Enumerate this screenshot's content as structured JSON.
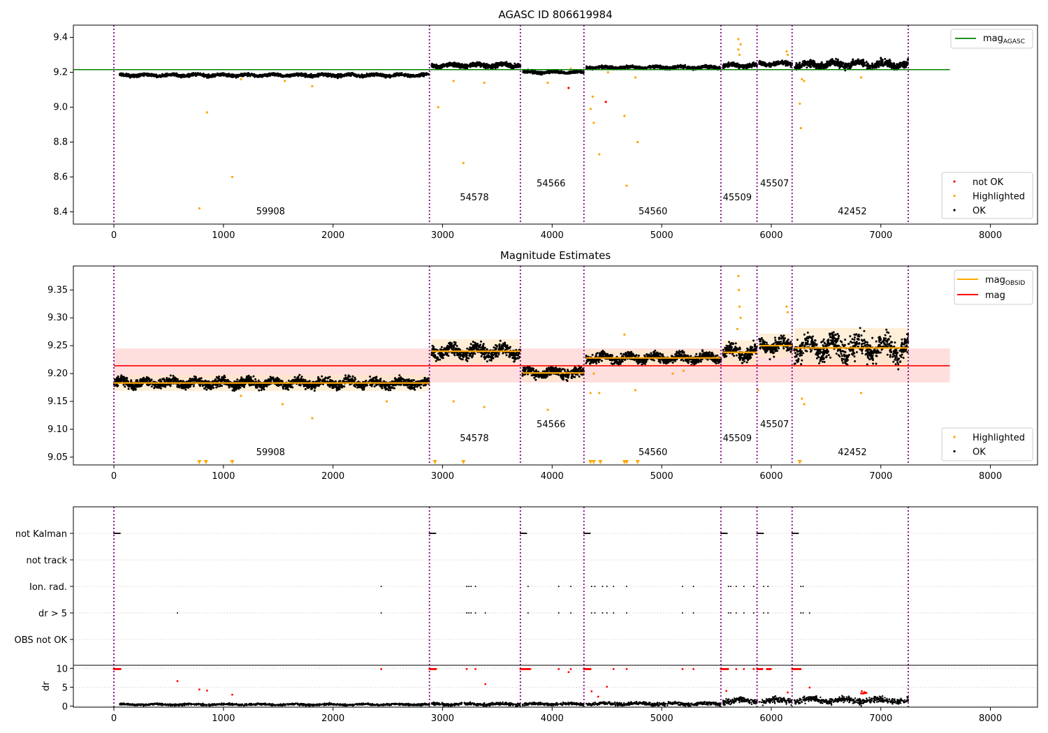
{
  "colors": {
    "ok": "#000000",
    "highlighted": "#ffa500",
    "not_ok": "#ff0000",
    "agasc_line": "#008000",
    "obsid_line": "#ffa500",
    "mag_line": "#ff0000",
    "mag_band": "#ffd6d6",
    "obsid_band": "#ffe8c8",
    "boundary": "#800080",
    "grid": "#b0b0b0"
  },
  "obs_boundaries": [
    0,
    2880,
    3710,
    4290,
    5540,
    5870,
    6190,
    7250
  ],
  "obsids": [
    {
      "id": "59908",
      "x": 1430,
      "level": 0
    },
    {
      "id": "54578",
      "x": 3290,
      "level": 1
    },
    {
      "id": "54566",
      "x": 3990,
      "level": 2
    },
    {
      "id": "54560",
      "x": 4920,
      "level": 0
    },
    {
      "id": "45509",
      "x": 5690,
      "level": 1
    },
    {
      "id": "45507",
      "x": 6030,
      "level": 2
    },
    {
      "id": "42452",
      "x": 6740,
      "level": 0
    }
  ],
  "chart_data": [
    {
      "type": "scatter",
      "title": "AGASC ID 806619984",
      "xlim": [
        -370,
        8430
      ],
      "ylim": [
        8.33,
        9.47
      ],
      "xticks": [
        0,
        1000,
        2000,
        3000,
        4000,
        5000,
        6000,
        7000,
        8000
      ],
      "yticks": [
        8.4,
        8.6,
        8.8,
        9.0,
        9.2,
        9.4
      ],
      "ytick_labels": [
        "8.4",
        "8.6",
        "8.8",
        "9.0",
        "9.2",
        "9.4"
      ],
      "legend_top": [
        {
          "label": "mag",
          "subscript": "AGASC",
          "kind": "line",
          "color": "#008000"
        }
      ],
      "legend_bottom": [
        {
          "label": "not OK",
          "kind": "dot",
          "color": "#ff0000"
        },
        {
          "label": "Highlighted",
          "kind": "dot",
          "color": "#ffa500"
        },
        {
          "label": "OK",
          "kind": "dot",
          "color": "#000000"
        }
      ],
      "agasc_mag": 9.215,
      "segments": [
        {
          "x0": 50,
          "x1": 2880,
          "mean": 9.183,
          "spread": 0.008
        },
        {
          "x0": 2900,
          "x1": 3710,
          "mean": 9.24,
          "spread": 0.012
        },
        {
          "x0": 3730,
          "x1": 4290,
          "mean": 9.2,
          "spread": 0.008
        },
        {
          "x0": 4310,
          "x1": 5540,
          "mean": 9.228,
          "spread": 0.008
        },
        {
          "x0": 5560,
          "x1": 5870,
          "mean": 9.238,
          "spread": 0.012
        },
        {
          "x0": 5890,
          "x1": 6190,
          "mean": 9.25,
          "spread": 0.012
        },
        {
          "x0": 6210,
          "x1": 7250,
          "mean": 9.245,
          "spread": 0.02
        }
      ],
      "highlighted": [
        [
          780,
          8.42
        ],
        [
          850,
          8.97
        ],
        [
          1080,
          8.6
        ],
        [
          1160,
          9.16
        ],
        [
          1810,
          9.12
        ],
        [
          1560,
          9.15
        ],
        [
          2960,
          9.0
        ],
        [
          3100,
          9.15
        ],
        [
          3190,
          8.68
        ],
        [
          3380,
          9.14
        ],
        [
          3960,
          9.14
        ],
        [
          4350,
          8.99
        ],
        [
          4370,
          9.06
        ],
        [
          4380,
          8.91
        ],
        [
          4430,
          8.73
        ],
        [
          4660,
          8.95
        ],
        [
          4680,
          8.55
        ],
        [
          4780,
          8.8
        ],
        [
          4760,
          9.17
        ],
        [
          5700,
          9.39
        ],
        [
          5700,
          9.33
        ],
        [
          5710,
          9.3
        ],
        [
          5720,
          9.36
        ],
        [
          6140,
          9.32
        ],
        [
          6150,
          9.3
        ],
        [
          6260,
          9.02
        ],
        [
          6270,
          8.88
        ],
        [
          6280,
          9.16
        ],
        [
          6300,
          9.15
        ],
        [
          6820,
          9.17
        ],
        [
          4170,
          9.22
        ],
        [
          4510,
          9.2
        ]
      ],
      "not_ok": [
        [
          4150,
          9.11
        ],
        [
          4490,
          9.03
        ]
      ]
    },
    {
      "type": "scatter",
      "title": "Magnitude Estimates",
      "xlim": [
        -370,
        8430
      ],
      "ylim": [
        9.036,
        9.393
      ],
      "xticks": [
        0,
        1000,
        2000,
        3000,
        4000,
        5000,
        6000,
        7000,
        8000
      ],
      "yticks": [
        9.05,
        9.1,
        9.15,
        9.2,
        9.25,
        9.3,
        9.35
      ],
      "ytick_labels": [
        "9.05",
        "9.10",
        "9.15",
        "9.20",
        "9.25",
        "9.30",
        "9.35"
      ],
      "legend_top": [
        {
          "label": "mag",
          "subscript": "OBSID",
          "kind": "line",
          "color": "#ffa500"
        },
        {
          "label": "mag",
          "subscript": "",
          "kind": "line",
          "color": "#ff0000"
        }
      ],
      "legend_bottom": [
        {
          "label": "Highlighted",
          "kind": "dot",
          "color": "#ffa500"
        },
        {
          "label": "OK",
          "kind": "dot",
          "color": "#000000"
        }
      ],
      "mag": 9.214,
      "mag_band": [
        9.184,
        9.245
      ],
      "mag_band_x": [
        0,
        7630
      ],
      "segments": [
        {
          "x0": 0,
          "x1": 2880,
          "mean": 9.183,
          "spread": 0.008
        },
        {
          "x0": 2900,
          "x1": 3710,
          "mean": 9.24,
          "spread": 0.012
        },
        {
          "x0": 3730,
          "x1": 4290,
          "mean": 9.201,
          "spread": 0.008
        },
        {
          "x0": 4310,
          "x1": 5540,
          "mean": 9.228,
          "spread": 0.008
        },
        {
          "x0": 5560,
          "x1": 5870,
          "mean": 9.238,
          "spread": 0.012
        },
        {
          "x0": 5890,
          "x1": 6190,
          "mean": 9.25,
          "spread": 0.012
        },
        {
          "x0": 6210,
          "x1": 7250,
          "mean": 9.246,
          "spread": 0.02
        }
      ],
      "highlighted": [
        [
          1540,
          9.145
        ],
        [
          1810,
          9.12
        ],
        [
          1160,
          9.16
        ],
        [
          2490,
          9.15
        ],
        [
          3100,
          9.15
        ],
        [
          3380,
          9.14
        ],
        [
          3960,
          9.135
        ],
        [
          4350,
          9.165
        ],
        [
          4380,
          9.2
        ],
        [
          4430,
          9.165
        ],
        [
          4660,
          9.27
        ],
        [
          4760,
          9.17
        ],
        [
          5700,
          9.375
        ],
        [
          5705,
          9.35
        ],
        [
          5710,
          9.32
        ],
        [
          5720,
          9.3
        ],
        [
          5690,
          9.28
        ],
        [
          5880,
          9.17
        ],
        [
          6140,
          9.32
        ],
        [
          6150,
          9.31
        ],
        [
          6280,
          9.155
        ],
        [
          6300,
          9.145
        ],
        [
          6820,
          9.165
        ],
        [
          5100,
          9.2
        ],
        [
          5200,
          9.205
        ]
      ],
      "triangles": [
        780,
        840,
        1080,
        2930,
        3190,
        4350,
        4380,
        4440,
        4660,
        4680,
        4780,
        6260
      ]
    },
    {
      "type": "scatter",
      "title": "",
      "xlim": [
        -370,
        8430
      ],
      "flag_rows": [
        "not Kalman",
        "not track",
        "Ion. rad.",
        "dr > 5",
        "OBS not OK"
      ],
      "flag_points": {
        "not Kalman": [
          [
            0,
            60
          ],
          [
            2880,
            2940
          ],
          [
            3710,
            3770
          ],
          [
            4290,
            4350
          ],
          [
            5540,
            5600
          ],
          [
            5870,
            5930
          ],
          [
            6190,
            6250
          ]
        ],
        "not track": [],
        "Ion. rad.": [
          2440,
          3220,
          3240,
          3260,
          3300,
          3780,
          4060,
          4170,
          4360,
          4390,
          4460,
          4500,
          4560,
          4680,
          5190,
          5290,
          5610,
          5630,
          5680,
          5750,
          5840,
          5930,
          5970,
          6270,
          6290
        ],
        "dr > 5": [
          580,
          2440,
          3220,
          3240,
          3260,
          3300,
          3390,
          3780,
          4060,
          4170,
          4360,
          4390,
          4460,
          4500,
          4560,
          4680,
          5190,
          5290,
          5610,
          5630,
          5680,
          5750,
          5840,
          5930,
          5970,
          6270,
          6290,
          6350
        ],
        "OBS not OK": []
      },
      "dr_ylim": [
        -0.3,
        10.8
      ],
      "dr_yticks": [
        0,
        5,
        10
      ],
      "ylabel": "dr",
      "dr_red": [
        [
          580,
          6.6
        ],
        [
          780,
          4.4
        ],
        [
          850,
          4.1
        ],
        [
          1080,
          3.0
        ],
        [
          2440,
          9.8
        ],
        [
          3220,
          9.8
        ],
        [
          3300,
          9.8
        ],
        [
          3390,
          5.8
        ],
        [
          4060,
          9.8
        ],
        [
          4150,
          9.0
        ],
        [
          4170,
          9.8
        ],
        [
          4360,
          3.9
        ],
        [
          4420,
          2.5
        ],
        [
          4500,
          5.1
        ],
        [
          4560,
          9.8
        ],
        [
          4680,
          9.8
        ],
        [
          5190,
          9.8
        ],
        [
          5290,
          9.8
        ],
        [
          5590,
          4.0
        ],
        [
          5680,
          9.8
        ],
        [
          5750,
          9.8
        ],
        [
          5840,
          9.8
        ],
        [
          6150,
          3.6
        ],
        [
          6350,
          4.9
        ]
      ],
      "dr_red_clusters": [
        [
          0,
          60
        ],
        [
          2880,
          2940
        ],
        [
          3710,
          3800
        ],
        [
          4290,
          4350
        ],
        [
          5540,
          5610
        ],
        [
          5870,
          5920
        ],
        [
          5960,
          6000
        ],
        [
          6190,
          6270
        ],
        [
          6820,
          6870
        ]
      ],
      "dr_segments": [
        {
          "x0": 50,
          "x1": 2880,
          "level": 0.4,
          "spread": 0.3
        },
        {
          "x0": 2900,
          "x1": 3710,
          "level": 0.5,
          "spread": 0.4
        },
        {
          "x0": 3730,
          "x1": 4290,
          "level": 0.5,
          "spread": 0.4
        },
        {
          "x0": 4310,
          "x1": 5540,
          "level": 0.6,
          "spread": 0.5
        },
        {
          "x0": 5560,
          "x1": 5870,
          "level": 1.3,
          "spread": 0.9
        },
        {
          "x0": 5890,
          "x1": 6190,
          "level": 1.4,
          "spread": 0.9
        },
        {
          "x0": 6210,
          "x1": 7250,
          "level": 1.5,
          "spread": 0.9
        }
      ]
    }
  ]
}
